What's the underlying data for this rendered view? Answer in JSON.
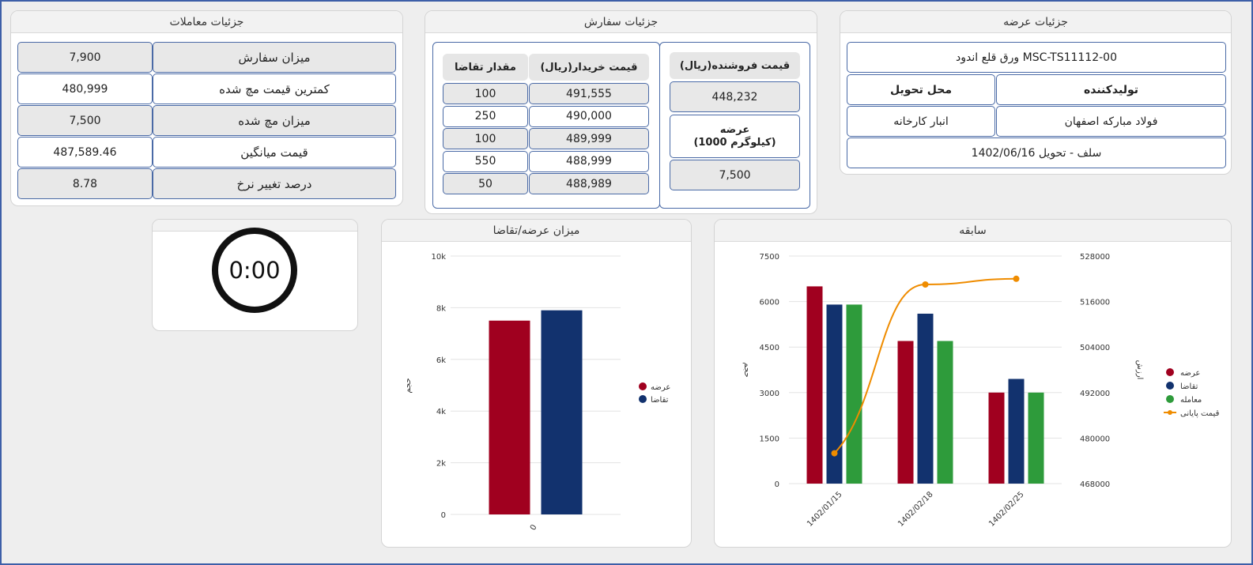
{
  "colors": {
    "supply": "#a0001f",
    "demand": "#12326e",
    "trade": "#2e9b3b",
    "final_price": "#ef8c00",
    "border": "#4a6aa6"
  },
  "trades_panel": {
    "title": "جزئیات معاملات",
    "rows": [
      {
        "label": "میزان سفارش",
        "value": "7,900"
      },
      {
        "label": "کمترین قیمت مچ شده",
        "value": "480,999"
      },
      {
        "label": "میزان مچ شده",
        "value": "7,500"
      },
      {
        "label": "قیمت میانگین",
        "value": "487,589.46"
      },
      {
        "label": "درصد تغییر نرخ",
        "value": "8.78"
      }
    ]
  },
  "order_panel": {
    "title": "جزئیات سفارش",
    "seller_price_header": "قیمت فروشنده(ریال)",
    "seller_price": "448,232",
    "supply_header_line1": "عرضه",
    "supply_header_line2": "(1000 کیلوگرم)",
    "supply_value": "7,500",
    "buyer_price_header": "قیمت خریدار(ریال)",
    "demand_qty_header": "مقدار تقاضا",
    "bids": [
      {
        "price": "491,555",
        "qty": "100"
      },
      {
        "price": "490,000",
        "qty": "250"
      },
      {
        "price": "489,999",
        "qty": "100"
      },
      {
        "price": "488,999",
        "qty": "550"
      },
      {
        "price": "488,989",
        "qty": "50"
      }
    ]
  },
  "offer_panel": {
    "title": "جزئیات عرضه",
    "product": "ورق قلع اندود MSC-TS11112-00",
    "producer_label": "تولیدکننده",
    "delivery_label": "محل تحویل",
    "producer_value": "فولاد مبارکه اصفهان",
    "delivery_value": "انبار کارخانه",
    "contract": "سلف - تحویل 1402/06/16"
  },
  "timer": {
    "value": "0:00"
  },
  "supply_demand_panel": {
    "title": "میزان عرضه/تقاضا"
  },
  "history_panel": {
    "title": "سابقه"
  },
  "chart_data": [
    {
      "type": "bar",
      "ylabel": "حجم",
      "categories": [
        "0"
      ],
      "ylim": [
        0,
        10000
      ],
      "y_ticks": [
        "0",
        "2k",
        "4k",
        "6k",
        "8k",
        "10k"
      ],
      "series": [
        {
          "name": "عرضه",
          "values": [
            7500
          ]
        },
        {
          "name": "تقاضا",
          "values": [
            7900
          ]
        }
      ],
      "legend": "right",
      "grid": true
    },
    {
      "type": "bar",
      "ylabel": "حجم",
      "y2label": "ارزش",
      "categories": [
        "1402/01/15",
        "1402/02/18",
        "1402/02/25"
      ],
      "ylim": [
        0,
        7500
      ],
      "y_ticks": [
        "0",
        "1500",
        "3000",
        "4500",
        "6000",
        "7500"
      ],
      "y2lim": [
        468000,
        528000
      ],
      "y2_ticks": [
        "468000",
        "480000",
        "492000",
        "504000",
        "516000",
        "528000"
      ],
      "series": [
        {
          "name": "عرضه",
          "values": [
            6500,
            4700,
            3000
          ]
        },
        {
          "name": "تقاضا",
          "values": [
            5900,
            5600,
            3450
          ]
        },
        {
          "name": "معامله",
          "values": [
            5900,
            4700,
            3000
          ]
        },
        {
          "name": "قیمت پایانی",
          "type": "line",
          "axis": "right",
          "values": [
            476000,
            520500,
            522000
          ]
        }
      ],
      "legend": "right",
      "grid": true
    }
  ]
}
